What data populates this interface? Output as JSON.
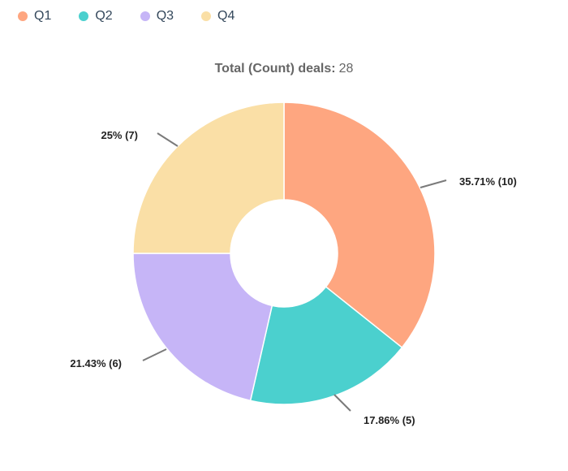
{
  "chart_data": {
    "type": "pie",
    "categories": [
      "Q1",
      "Q2",
      "Q3",
      "Q4"
    ],
    "values": [
      10,
      5,
      6,
      7
    ],
    "percentages": [
      "35.71%",
      "17.86%",
      "21.43%",
      "25%"
    ],
    "data_labels": [
      "35.71% (10)",
      "17.86% (5)",
      "21.43% (6)",
      "25% (7)"
    ],
    "colors": [
      "#fea680",
      "#4bd0ce",
      "#c6b5f7",
      "#fadfa6"
    ],
    "legend_position": "top-left",
    "donut": true,
    "total": {
      "label": "Total (Count) deals:",
      "value": "28"
    }
  }
}
